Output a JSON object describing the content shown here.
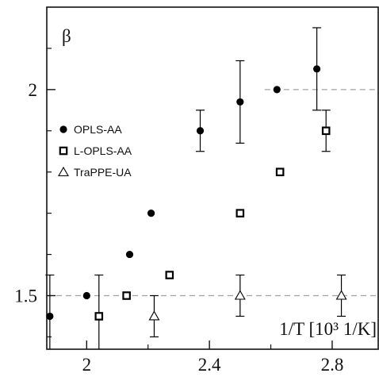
{
  "chart_data": {
    "type": "scatter",
    "xlabel": "1/T [10³ 1/K]",
    "ylabel": "β",
    "xlim": [
      1.87,
      2.95
    ],
    "ylim": [
      1.37,
      2.2
    ],
    "x_ticks": [
      2.0,
      2.4,
      2.8
    ],
    "x_tick_labels": [
      "2",
      "2.4",
      "2.8"
    ],
    "x_minor_ticks": [
      2.2,
      2.6
    ],
    "y_ticks": [
      1.5,
      2.0
    ],
    "y_tick_labels": [
      "1.5",
      "2"
    ],
    "y_minor_ticks": [
      1.4,
      1.6,
      1.7,
      1.8,
      1.9,
      2.1
    ],
    "reference_lines": [
      {
        "y": 2.0,
        "x_from": 2.58,
        "x_to": 2.95,
        "style": "dashed"
      },
      {
        "y": 1.5,
        "x_from": 1.87,
        "x_to": 2.95,
        "style": "dashed"
      }
    ],
    "legend_position": "left",
    "series": [
      {
        "name": "OPLS-AA",
        "marker": "filled-circle",
        "points": [
          {
            "x": 1.88,
            "y": 1.45,
            "err": 0.1
          },
          {
            "x": 2.0,
            "y": 1.5
          },
          {
            "x": 2.14,
            "y": 1.6
          },
          {
            "x": 2.21,
            "y": 1.7
          },
          {
            "x": 2.37,
            "y": 1.9,
            "err": 0.05
          },
          {
            "x": 2.5,
            "y": 1.97,
            "err": 0.1
          },
          {
            "x": 2.62,
            "y": 2.0
          },
          {
            "x": 2.75,
            "y": 2.05,
            "err": 0.1
          }
        ]
      },
      {
        "name": "L-OPLS-AA",
        "marker": "open-square",
        "points": [
          {
            "x": 2.04,
            "y": 1.45,
            "err": 0.1
          },
          {
            "x": 2.13,
            "y": 1.5
          },
          {
            "x": 2.27,
            "y": 1.55
          },
          {
            "x": 2.5,
            "y": 1.7
          },
          {
            "x": 2.63,
            "y": 1.8
          },
          {
            "x": 2.78,
            "y": 1.9,
            "err": 0.05
          }
        ]
      },
      {
        "name": "TraPPE-UA",
        "marker": "open-triangle",
        "points": [
          {
            "x": 2.22,
            "y": 1.45,
            "err": 0.05
          },
          {
            "x": 2.5,
            "y": 1.5,
            "err": 0.05
          },
          {
            "x": 2.83,
            "y": 1.5,
            "err": 0.05
          }
        ]
      }
    ]
  }
}
